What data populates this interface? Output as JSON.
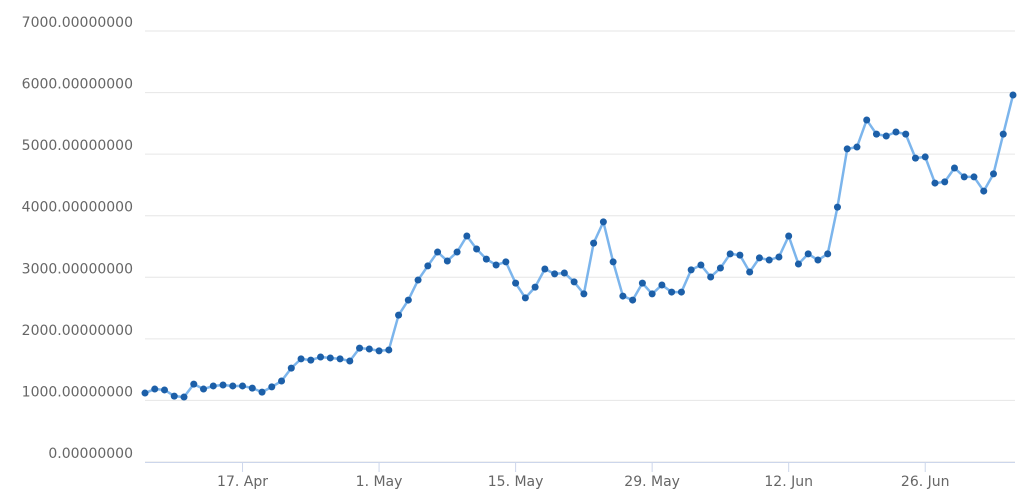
{
  "chart_data": {
    "type": "line",
    "categories": [
      null,
      null,
      null,
      null,
      null,
      null,
      null,
      null,
      null,
      null,
      "17. Apr",
      null,
      null,
      null,
      null,
      null,
      null,
      null,
      null,
      null,
      null,
      null,
      null,
      null,
      "1. May",
      null,
      null,
      null,
      null,
      null,
      null,
      null,
      null,
      null,
      null,
      null,
      null,
      null,
      "15. May",
      null,
      null,
      null,
      null,
      null,
      null,
      null,
      null,
      null,
      null,
      null,
      null,
      null,
      "29. May",
      null,
      null,
      null,
      null,
      null,
      null,
      null,
      null,
      null,
      null,
      null,
      null,
      null,
      "12. Jun",
      null,
      null,
      null,
      null,
      null,
      null,
      null,
      null,
      null,
      null,
      null,
      null,
      null,
      "26. Jun",
      null,
      null,
      null,
      null,
      null,
      null,
      null,
      null,
      null
    ],
    "values": [
      1120,
      1185,
      1170,
      1070,
      1055,
      1265,
      1185,
      1235,
      1250,
      1235,
      1235,
      1200,
      1135,
      1220,
      1315,
      1525,
      1675,
      1655,
      1705,
      1690,
      1675,
      1640,
      1850,
      1835,
      1805,
      1820,
      2385,
      2630,
      2955,
      3185,
      3410,
      3265,
      3410,
      3670,
      3460,
      3295,
      3200,
      3250,
      2905,
      2665,
      2840,
      3135,
      3055,
      3070,
      2925,
      2730,
      3555,
      3900,
      3250,
      2695,
      2630,
      2905,
      2730,
      2875,
      2760,
      2760,
      3120,
      3200,
      3005,
      3150,
      3380,
      3360,
      3085,
      3315,
      3280,
      3330,
      3670,
      3215,
      3380,
      3280,
      3380,
      4140,
      5085,
      5115,
      5555,
      5325,
      5295,
      5360,
      5325,
      4935,
      4955,
      4530,
      4550,
      4775,
      4630,
      4630,
      4400,
      4680,
      5325,
      5960
    ],
    "color": "#7cb5ec",
    "marker_color": "#1c5fa8",
    "ylim": [
      0,
      7000
    ],
    "yticks": [
      {
        "value": 0,
        "label": "0.00000000"
      },
      {
        "value": 1000,
        "label": "1000.00000000"
      },
      {
        "value": 2000,
        "label": "2000.00000000"
      },
      {
        "value": 3000,
        "label": "3000.00000000"
      },
      {
        "value": 4000,
        "label": "4000.00000000"
      },
      {
        "value": 5000,
        "label": "5000.00000000"
      },
      {
        "value": 6000,
        "label": "6000.00000000"
      },
      {
        "value": 7000,
        "label": "7000.00000000"
      }
    ],
    "grid": true
  }
}
